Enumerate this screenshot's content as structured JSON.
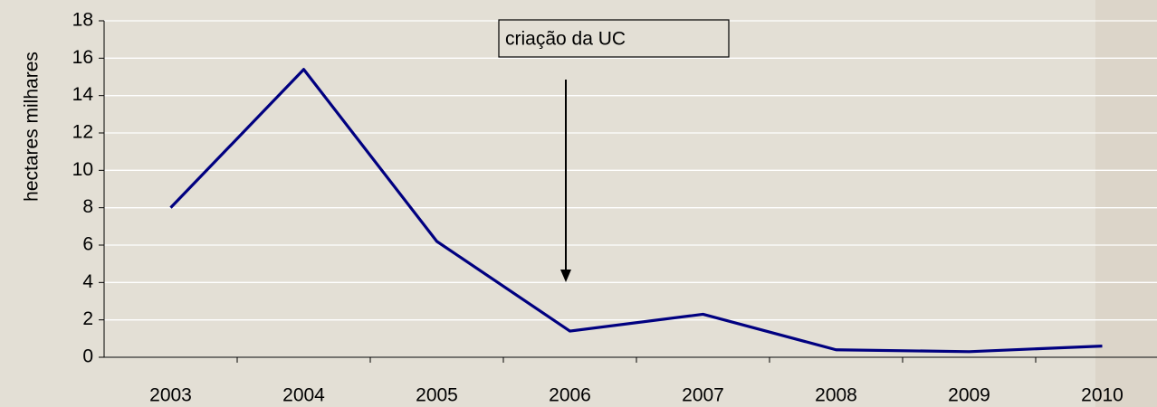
{
  "chart_data": {
    "type": "line",
    "y_label": "hectares milhares",
    "annotation": "criação da UC",
    "categories": [
      "2003",
      "2004",
      "2005",
      "2006",
      "2007",
      "2008",
      "2009",
      "2010"
    ],
    "values": [
      8.0,
      15.4,
      6.2,
      1.4,
      2.3,
      0.4,
      0.3,
      0.6
    ],
    "color": "#000080",
    "ylim": [
      0,
      18
    ],
    "yticks": [
      0,
      2,
      4,
      6,
      8,
      10,
      12,
      14,
      16,
      18
    ],
    "grid": true
  }
}
